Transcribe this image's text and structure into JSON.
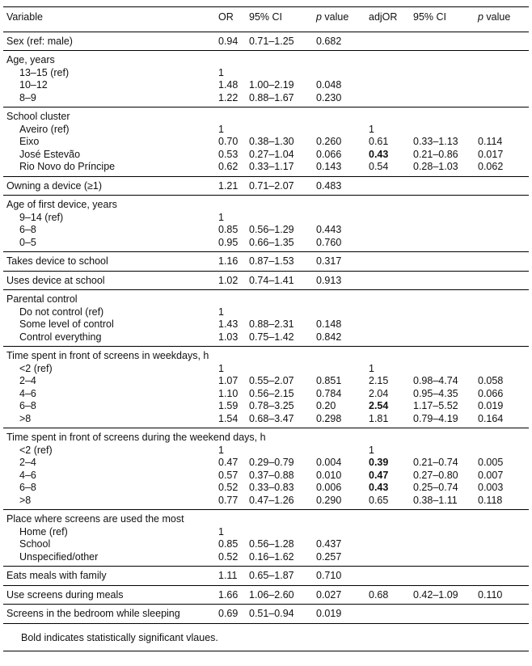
{
  "table": {
    "header": [
      "Variable",
      "OR",
      "95% CI",
      "p value",
      "adjOR",
      "95% CI",
      "p value"
    ],
    "groups": [
      {
        "rows": [
          {
            "label": "Sex (ref: male)",
            "cells": [
              "0.94",
              "0.71–1.25",
              "0.682",
              null,
              null,
              null
            ]
          }
        ]
      },
      {
        "title": "Age, years",
        "rows": [
          {
            "label": "13–15 (ref)",
            "cells": [
              "1",
              null,
              null,
              null,
              null,
              null
            ]
          },
          {
            "label": "10–12",
            "cells": [
              "1.48",
              "1.00–2.19",
              "0.048",
              null,
              null,
              null
            ]
          },
          {
            "label": "8–9",
            "cells": [
              "1.22",
              "0.88–1.67",
              "0.230",
              null,
              null,
              null
            ]
          }
        ]
      },
      {
        "title": "School cluster",
        "rows": [
          {
            "label": "Aveiro (ref)",
            "cells": [
              "1",
              null,
              null,
              "1",
              null,
              null
            ]
          },
          {
            "label": "Eixo",
            "cells": [
              "0.70",
              "0.38–1.30",
              "0.260",
              "0.61",
              "0.33–1.13",
              "0.114"
            ]
          },
          {
            "label": "José Estevão",
            "cells": [
              "0.53",
              "0.27–1.04",
              "0.066",
              "0.43",
              "0.21–0.86",
              "0.017"
            ],
            "bold": true
          },
          {
            "label": "Rio Novo do Príncipe",
            "cells": [
              "0.62",
              "0.33–1.17",
              "0.143",
              "0.54",
              "0.28–1.03",
              "0.062"
            ]
          }
        ]
      },
      {
        "rows": [
          {
            "label": "Owning a device (≥1)",
            "cells": [
              "1.21",
              "0.71–2.07",
              "0.483",
              null,
              null,
              null
            ]
          }
        ]
      },
      {
        "title": "Age of first device, years",
        "rows": [
          {
            "label": "9–14 (ref)",
            "cells": [
              "1",
              null,
              null,
              null,
              null,
              null
            ]
          },
          {
            "label": "6–8",
            "cells": [
              "0.85",
              "0.56–1.29",
              "0.443",
              null,
              null,
              null
            ]
          },
          {
            "label": "0–5",
            "cells": [
              "0.95",
              "0.66–1.35",
              "0.760",
              null,
              null,
              null
            ]
          }
        ]
      },
      {
        "rows": [
          {
            "label": "Takes device to school",
            "cells": [
              "1.16",
              "0.87–1.53",
              "0.317",
              null,
              null,
              null
            ]
          }
        ]
      },
      {
        "rows": [
          {
            "label": "Uses device at school",
            "cells": [
              "1.02",
              "0.74–1.41",
              "0.913",
              null,
              null,
              null
            ]
          }
        ]
      },
      {
        "title": "Parental control",
        "rows": [
          {
            "label": "Do not control (ref)",
            "cells": [
              "1",
              null,
              null,
              null,
              null,
              null
            ]
          },
          {
            "label": "Some level of control",
            "cells": [
              "1.43",
              "0.88–2.31",
              "0.148",
              null,
              null,
              null
            ]
          },
          {
            "label": "Control everything",
            "cells": [
              "1.03",
              "0.75–1.42",
              "0.842",
              null,
              null,
              null
            ]
          }
        ]
      },
      {
        "title": "Time spent in front of screens in weekdays, h",
        "rows": [
          {
            "label": "<2 (ref)",
            "cells": [
              "1",
              null,
              null,
              "1",
              null,
              null
            ]
          },
          {
            "label": "2–4",
            "cells": [
              "1.07",
              "0.55–2.07",
              "0.851",
              "2.15",
              "0.98–4.74",
              "0.058"
            ]
          },
          {
            "label": "4–6",
            "cells": [
              "1.10",
              "0.56–2.15",
              "0.784",
              "2.04",
              "0.95–4.35",
              "0.066"
            ]
          },
          {
            "label": "6–8",
            "cells": [
              "1.59",
              "0.78–3.25",
              "0.20",
              "2.54",
              "1.17–5.52",
              "0.019"
            ],
            "bold": true
          },
          {
            "label": ">8",
            "cells": [
              "1.54",
              "0.68–3.47",
              "0.298",
              "1.81",
              "0.79–4.19",
              "0.164"
            ]
          }
        ]
      },
      {
        "title": "Time spent in front of screens during the weekend days, h",
        "rows": [
          {
            "label": "<2 (ref)",
            "cells": [
              "1",
              null,
              null,
              "1",
              null,
              null
            ]
          },
          {
            "label": "2–4",
            "cells": [
              "0.47",
              "0.29–0.79",
              "0.004",
              "0.39",
              "0.21–0.74",
              "0.005"
            ],
            "bold": true
          },
          {
            "label": "4–6",
            "cells": [
              "0.57",
              "0.37–0.88",
              "0.010",
              "0.47",
              "0.27–0.80",
              "0.007"
            ],
            "bold": true
          },
          {
            "label": "6–8",
            "cells": [
              "0.52",
              "0.33–0.83",
              "0.006",
              "0.43",
              "0.25–0.74",
              "0.003"
            ],
            "bold": true
          },
          {
            "label": ">8",
            "cells": [
              "0.77",
              "0.47–1.26",
              "0.290",
              "0.65",
              "0.38–1.11",
              "0.118"
            ]
          }
        ]
      },
      {
        "title": "Place where screens are used the most",
        "rows": [
          {
            "label": "Home (ref)",
            "cells": [
              "1",
              null,
              null,
              null,
              null,
              null
            ]
          },
          {
            "label": "School",
            "cells": [
              "0.85",
              "0.56–1.28",
              "0.437",
              null,
              null,
              null
            ]
          },
          {
            "label": "Unspecified/other",
            "cells": [
              "0.52",
              "0.16–1.62",
              "0.257",
              null,
              null,
              null
            ]
          }
        ]
      },
      {
        "rows": [
          {
            "label": "Eats meals with family",
            "cells": [
              "1.11",
              "0.65–1.87",
              "0.710",
              null,
              null,
              null
            ]
          }
        ]
      },
      {
        "rows": [
          {
            "label": "Use screens during meals",
            "cells": [
              "1.66",
              "1.06–2.60",
              "0.027",
              "0.68",
              "0.42–1.09",
              "0.110"
            ]
          }
        ]
      },
      {
        "rows": [
          {
            "label": "Screens in the bedroom while sleeping",
            "cells": [
              "0.69",
              "0.51–0.94",
              "0.019",
              null,
              null,
              null
            ]
          }
        ]
      }
    ],
    "footnote": "Bold indicates statistically significant vlaues."
  }
}
